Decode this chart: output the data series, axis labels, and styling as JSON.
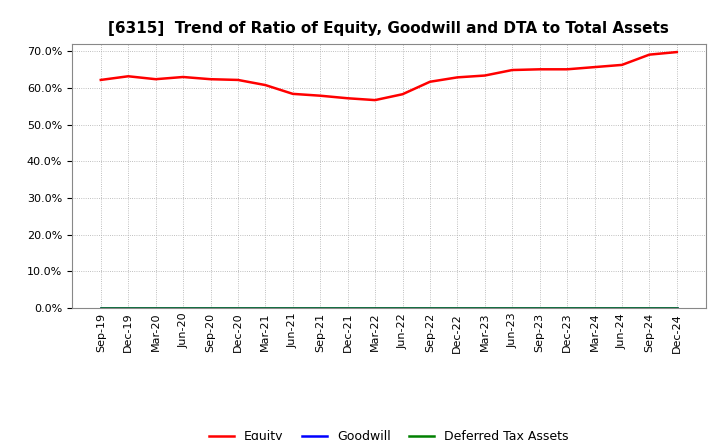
{
  "title": "[6315]  Trend of Ratio of Equity, Goodwill and DTA to Total Assets",
  "xlabel": "",
  "ylabel": "",
  "ylim": [
    0.0,
    0.72
  ],
  "yticks": [
    0.0,
    0.1,
    0.2,
    0.3,
    0.4,
    0.5,
    0.6,
    0.7
  ],
  "background_color": "#ffffff",
  "plot_bg_color": "#ffffff",
  "grid_color": "#aaaaaa",
  "x_labels": [
    "Sep-19",
    "Dec-19",
    "Mar-20",
    "Jun-20",
    "Sep-20",
    "Dec-20",
    "Mar-21",
    "Jun-21",
    "Sep-21",
    "Dec-21",
    "Mar-22",
    "Jun-22",
    "Sep-22",
    "Dec-22",
    "Mar-23",
    "Jun-23",
    "Sep-23",
    "Dec-23",
    "Mar-24",
    "Jun-24",
    "Sep-24",
    "Dec-24"
  ],
  "equity": [
    0.622,
    0.632,
    0.624,
    0.63,
    0.624,
    0.622,
    0.608,
    0.584,
    0.579,
    0.572,
    0.567,
    0.583,
    0.617,
    0.629,
    0.634,
    0.649,
    0.651,
    0.651,
    0.657,
    0.663,
    0.691,
    0.698
  ],
  "goodwill": [
    0.0,
    0.0,
    0.0,
    0.0,
    0.0,
    0.0,
    0.0,
    0.0,
    0.0,
    0.0,
    0.0,
    0.0,
    0.0,
    0.0,
    0.0,
    0.0,
    0.0,
    0.0,
    0.0,
    0.0,
    0.0,
    0.0
  ],
  "dta": [
    0.0,
    0.0,
    0.0,
    0.0,
    0.0,
    0.0,
    0.0,
    0.0,
    0.0,
    0.0,
    0.0,
    0.0,
    0.0,
    0.0,
    0.0,
    0.0,
    0.0,
    0.0,
    0.0,
    0.0,
    0.0,
    0.0
  ],
  "equity_color": "#ff0000",
  "goodwill_color": "#0000ff",
  "dta_color": "#008000",
  "line_width": 1.8,
  "legend_labels": [
    "Equity",
    "Goodwill",
    "Deferred Tax Assets"
  ],
  "title_fontsize": 11,
  "tick_fontsize": 8,
  "legend_fontsize": 9
}
